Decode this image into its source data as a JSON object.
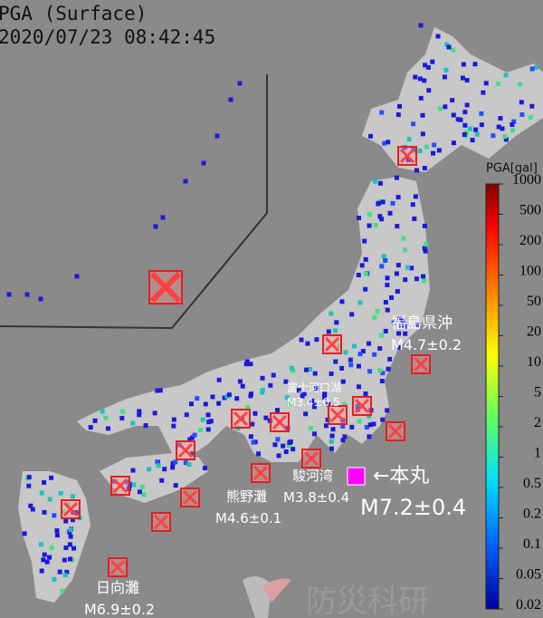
{
  "header": {
    "title": "PGA (Surface)",
    "timestamp": "2020/07/23 08:42:45"
  },
  "colorbar": {
    "label": "PGA[gal]",
    "ticks": [
      "1000",
      "500",
      "200",
      "100",
      "50",
      "20",
      "10",
      "5",
      "2",
      "1",
      "0.5",
      "0.2",
      "0.1",
      "0.05",
      "0.02"
    ]
  },
  "annotations": {
    "fukushima": {
      "name": "福島県沖",
      "magnitude": "M4.7±0.2"
    },
    "fujikawaguchiko": {
      "name": "富士河口湖",
      "magnitude": "M3.4±0.5"
    },
    "surugawan": {
      "name": "駿河湾",
      "magnitude": "M3.8±0.4"
    },
    "kumanonada": {
      "name": "熊野灘",
      "magnitude": "M4.6±0.1"
    },
    "hyuganada": {
      "name": "日向灘",
      "magnitude": "M6.9±0.2"
    },
    "main": {
      "name": "←本丸",
      "magnitude": "M7.2±0.4"
    }
  },
  "logo": "防災科研"
}
